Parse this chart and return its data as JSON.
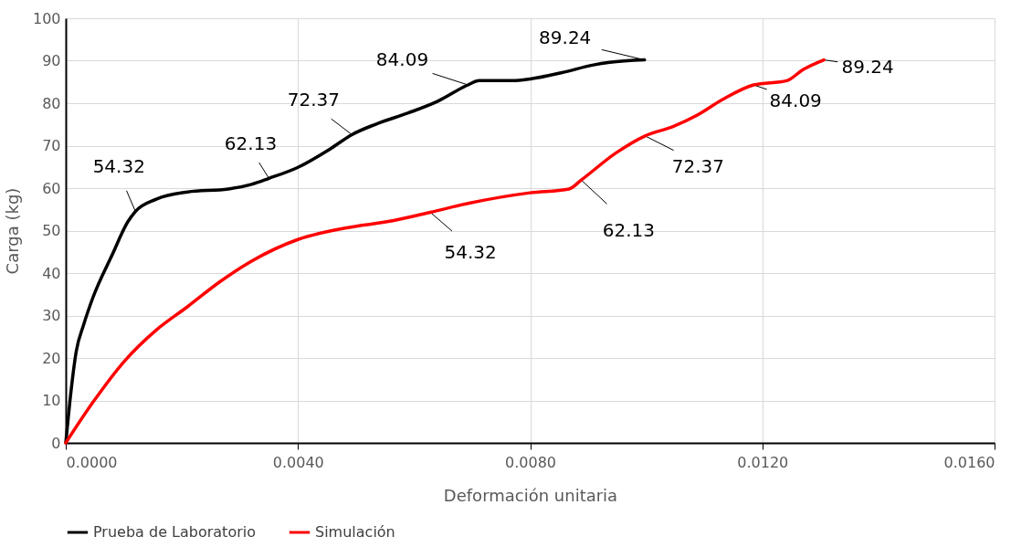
{
  "chart_data": {
    "type": "line",
    "xlabel": "Deformación unitaria",
    "ylabel": "Carga (kg)",
    "xlim": [
      0,
      0.016
    ],
    "ylim": [
      0,
      100
    ],
    "xticks": [
      {
        "value": 0,
        "label": "0.0000"
      },
      {
        "value": 0.004,
        "label": "0.0040"
      },
      {
        "value": 0.008,
        "label": "0.0080"
      },
      {
        "value": 0.012,
        "label": "0.0120"
      },
      {
        "value": 0.016,
        "label": "0.0160"
      }
    ],
    "yticks": [
      0,
      10,
      20,
      30,
      40,
      50,
      60,
      70,
      80,
      90,
      100
    ],
    "grid": true,
    "legend": "bottom",
    "marker": "none",
    "line_style": "solid",
    "series": [
      {
        "name": "Prueba de Laboratorio",
        "color": "#000000",
        "x": [
          0,
          7e-05,
          0.00018,
          0.00031,
          0.00047,
          0.0008,
          0.00107,
          0.0012,
          0.00156,
          0.0021,
          0.0028,
          0.0032,
          0.0035,
          0.004,
          0.00454,
          0.00493,
          0.00535,
          0.0059,
          0.0064,
          0.00693,
          0.00712,
          0.00769,
          0.008,
          0.00855,
          0.00909,
          0.00937,
          0.00997
        ],
        "values": [
          0,
          9.6,
          21.5,
          27.9,
          34.3,
          44.3,
          52.1,
          54.5,
          57.4,
          59.1,
          59.8,
          60.9,
          62.3,
          64.9,
          69.1,
          72.6,
          75.1,
          77.7,
          80.4,
          84.3,
          85.3,
          85.3,
          85.7,
          87.2,
          89.0,
          89.6,
          90.2
        ]
      },
      {
        "name": "Simulación",
        "color": "#ff0000",
        "x": [
          0,
          0.00047,
          0.00102,
          0.00156,
          0.0021,
          0.00265,
          0.0032,
          0.004,
          0.00481,
          0.00563,
          0.00628,
          0.00693,
          0.008,
          0.00867,
          0.00888,
          0.00948,
          0.00998,
          0.01046,
          0.01088,
          0.01132,
          0.01185,
          0.01242,
          0.0127,
          0.01306
        ],
        "values": [
          0,
          9.6,
          19.4,
          26.6,
          32.1,
          37.9,
          42.8,
          47.9,
          50.6,
          52.3,
          54.3,
          56.4,
          58.9,
          59.8,
          61.9,
          68.3,
          72.3,
          74.5,
          77.2,
          80.9,
          84.3,
          85.3,
          87.9,
          90.2
        ]
      }
    ],
    "annotations": [
      {
        "text": "54.32",
        "x": 0.0012,
        "y": 54.5
      },
      {
        "text": "62.13",
        "x": 0.0035,
        "y": 62.3
      },
      {
        "text": "72.37",
        "x": 0.00493,
        "y": 72.6
      },
      {
        "text": "84.09",
        "x": 0.00693,
        "y": 84.3
      },
      {
        "text": "89.24",
        "x": 0.00997,
        "y": 90.2
      },
      {
        "text": "54.32",
        "x": 0.00628,
        "y": 54.3
      },
      {
        "text": "62.13",
        "x": 0.00888,
        "y": 61.9
      },
      {
        "text": "72.37",
        "x": 0.00998,
        "y": 72.3
      },
      {
        "text": "84.09",
        "x": 0.01185,
        "y": 84.3
      },
      {
        "text": "89.24",
        "x": 0.01306,
        "y": 90.2
      }
    ]
  }
}
